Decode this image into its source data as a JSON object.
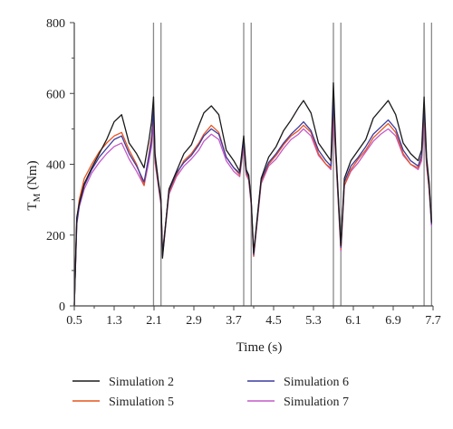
{
  "chart_data": {
    "type": "line",
    "xlabel": "Time (s)",
    "ylabel": "T",
    "ylabel_sub": "M",
    "ylabel_unit": " (Nm)",
    "xlim": [
      0.5,
      7.7
    ],
    "ylim": [
      0,
      800
    ],
    "x_ticks": [
      0.5,
      1.3,
      2.1,
      2.9,
      3.7,
      4.5,
      5.3,
      6.1,
      6.9,
      7.7
    ],
    "x_tick_labels": [
      "0.5",
      "1.3",
      "2.1",
      "2.9",
      "3.7",
      "4.5",
      "5.3",
      "6.1",
      "6.9",
      "7.7"
    ],
    "y_ticks": [
      0,
      200,
      400,
      600,
      800
    ],
    "y_tick_labels": [
      "0",
      "200",
      "400",
      "600",
      "800"
    ],
    "vertical_markers": [
      2.09,
      2.24,
      3.9,
      4.05,
      5.7,
      5.85,
      7.52,
      7.67
    ],
    "legend_position": "bottom",
    "series": [
      {
        "name": "Simulation 2",
        "color": "#1a1a1a",
        "x": [
          0.5,
          0.55,
          0.6,
          0.7,
          0.85,
          1.0,
          1.15,
          1.3,
          1.45,
          1.6,
          1.75,
          1.9,
          2.0,
          2.05,
          2.09,
          2.12,
          2.18,
          2.24,
          2.27,
          2.4,
          2.55,
          2.7,
          2.85,
          3.0,
          3.1,
          3.25,
          3.4,
          3.55,
          3.7,
          3.82,
          3.9,
          3.95,
          4.0,
          4.05,
          4.1,
          4.25,
          4.4,
          4.55,
          4.7,
          4.85,
          5.0,
          5.1,
          5.25,
          5.4,
          5.55,
          5.65,
          5.7,
          5.75,
          5.85,
          5.92,
          6.05,
          6.2,
          6.35,
          6.5,
          6.65,
          6.8,
          6.95,
          7.1,
          7.25,
          7.4,
          7.47,
          7.52,
          7.57,
          7.62,
          7.67
        ],
        "y": [
          0,
          250,
          290,
          345,
          390,
          430,
          470,
          520,
          540,
          460,
          430,
          390,
          470,
          520,
          590,
          430,
          360,
          300,
          135,
          330,
          380,
          430,
          455,
          510,
          545,
          565,
          540,
          440,
          410,
          380,
          480,
          385,
          370,
          300,
          150,
          360,
          420,
          450,
          495,
          525,
          560,
          580,
          545,
          460,
          430,
          410,
          630,
          440,
          170,
          360,
          410,
          440,
          470,
          530,
          555,
          580,
          540,
          460,
          430,
          410,
          440,
          590,
          420,
          350,
          235
        ]
      },
      {
        "name": "Simulation 5",
        "color": "#e8541e",
        "x": [
          0.5,
          0.55,
          0.6,
          0.7,
          0.85,
          1.0,
          1.15,
          1.3,
          1.45,
          1.6,
          1.75,
          1.9,
          2.0,
          2.05,
          2.09,
          2.12,
          2.18,
          2.24,
          2.27,
          2.4,
          2.55,
          2.7,
          2.85,
          3.0,
          3.1,
          3.25,
          3.4,
          3.55,
          3.7,
          3.82,
          3.9,
          3.95,
          4.0,
          4.05,
          4.1,
          4.25,
          4.4,
          4.55,
          4.7,
          4.85,
          5.0,
          5.1,
          5.25,
          5.4,
          5.55,
          5.65,
          5.7,
          5.75,
          5.85,
          5.92,
          6.05,
          6.2,
          6.35,
          6.5,
          6.65,
          6.8,
          6.95,
          7.1,
          7.25,
          7.4,
          7.47,
          7.52,
          7.57,
          7.62,
          7.67
        ],
        "y": [
          0,
          240,
          300,
          360,
          400,
          435,
          460,
          480,
          490,
          440,
          400,
          340,
          430,
          480,
          540,
          410,
          350,
          290,
          150,
          320,
          370,
          410,
          430,
          460,
          485,
          510,
          490,
          420,
          390,
          370,
          460,
          375,
          360,
          290,
          140,
          350,
          400,
          425,
          455,
          480,
          495,
          510,
          490,
          430,
          400,
          390,
          560,
          420,
          160,
          340,
          385,
          415,
          440,
          475,
          495,
          515,
          490,
          430,
          400,
          390,
          420,
          545,
          400,
          330,
          230
        ]
      },
      {
        "name": "Simulation 6",
        "color": "#3b3aa0",
        "x": [
          0.5,
          0.55,
          0.6,
          0.7,
          0.85,
          1.0,
          1.15,
          1.3,
          1.45,
          1.6,
          1.75,
          1.9,
          2.0,
          2.05,
          2.09,
          2.12,
          2.18,
          2.24,
          2.27,
          2.4,
          2.55,
          2.7,
          2.85,
          3.0,
          3.1,
          3.25,
          3.4,
          3.55,
          3.7,
          3.82,
          3.9,
          3.95,
          4.0,
          4.05,
          4.1,
          4.25,
          4.4,
          4.55,
          4.7,
          4.85,
          5.0,
          5.1,
          5.25,
          5.4,
          5.55,
          5.65,
          5.7,
          5.75,
          5.85,
          5.92,
          6.05,
          6.2,
          6.35,
          6.5,
          6.65,
          6.8,
          6.95,
          7.1,
          7.25,
          7.4,
          7.47,
          7.52,
          7.57,
          7.62,
          7.67
        ],
        "y": [
          0,
          235,
          285,
          340,
          385,
          420,
          445,
          470,
          480,
          430,
          395,
          350,
          425,
          465,
          560,
          420,
          355,
          295,
          145,
          325,
          375,
          405,
          425,
          455,
          480,
          500,
          485,
          420,
          390,
          375,
          465,
          380,
          365,
          295,
          145,
          355,
          405,
          430,
          460,
          485,
          505,
          520,
          495,
          440,
          410,
          395,
          580,
          430,
          165,
          350,
          395,
          420,
          450,
          485,
          505,
          525,
          500,
          440,
          410,
          395,
          425,
          560,
          410,
          340,
          230
        ]
      },
      {
        "name": "Simulation 7",
        "color": "#c458c8",
        "x": [
          0.5,
          0.55,
          0.6,
          0.7,
          0.85,
          1.0,
          1.15,
          1.3,
          1.45,
          1.6,
          1.75,
          1.9,
          2.0,
          2.05,
          2.09,
          2.12,
          2.18,
          2.24,
          2.27,
          2.4,
          2.55,
          2.7,
          2.85,
          3.0,
          3.1,
          3.25,
          3.4,
          3.55,
          3.7,
          3.82,
          3.9,
          3.95,
          4.0,
          4.05,
          4.1,
          4.25,
          4.4,
          4.55,
          4.7,
          4.85,
          5.0,
          5.1,
          5.25,
          5.4,
          5.55,
          5.65,
          5.7,
          5.75,
          5.85,
          5.92,
          6.05,
          6.2,
          6.35,
          6.5,
          6.65,
          6.8,
          6.95,
          7.1,
          7.25,
          7.4,
          7.47,
          7.52,
          7.57,
          7.62,
          7.67
        ],
        "y": [
          0,
          230,
          280,
          330,
          375,
          405,
          430,
          450,
          460,
          415,
          380,
          340,
          410,
          450,
          520,
          405,
          345,
          285,
          140,
          315,
          365,
          395,
          415,
          440,
          465,
          485,
          470,
          410,
          380,
          365,
          450,
          370,
          355,
          285,
          140,
          345,
          395,
          415,
          445,
          470,
          485,
          500,
          480,
          425,
          400,
          385,
          530,
          415,
          155,
          340,
          380,
          405,
          435,
          465,
          485,
          500,
          480,
          425,
          400,
          385,
          410,
          520,
          395,
          330,
          225
        ]
      }
    ]
  }
}
